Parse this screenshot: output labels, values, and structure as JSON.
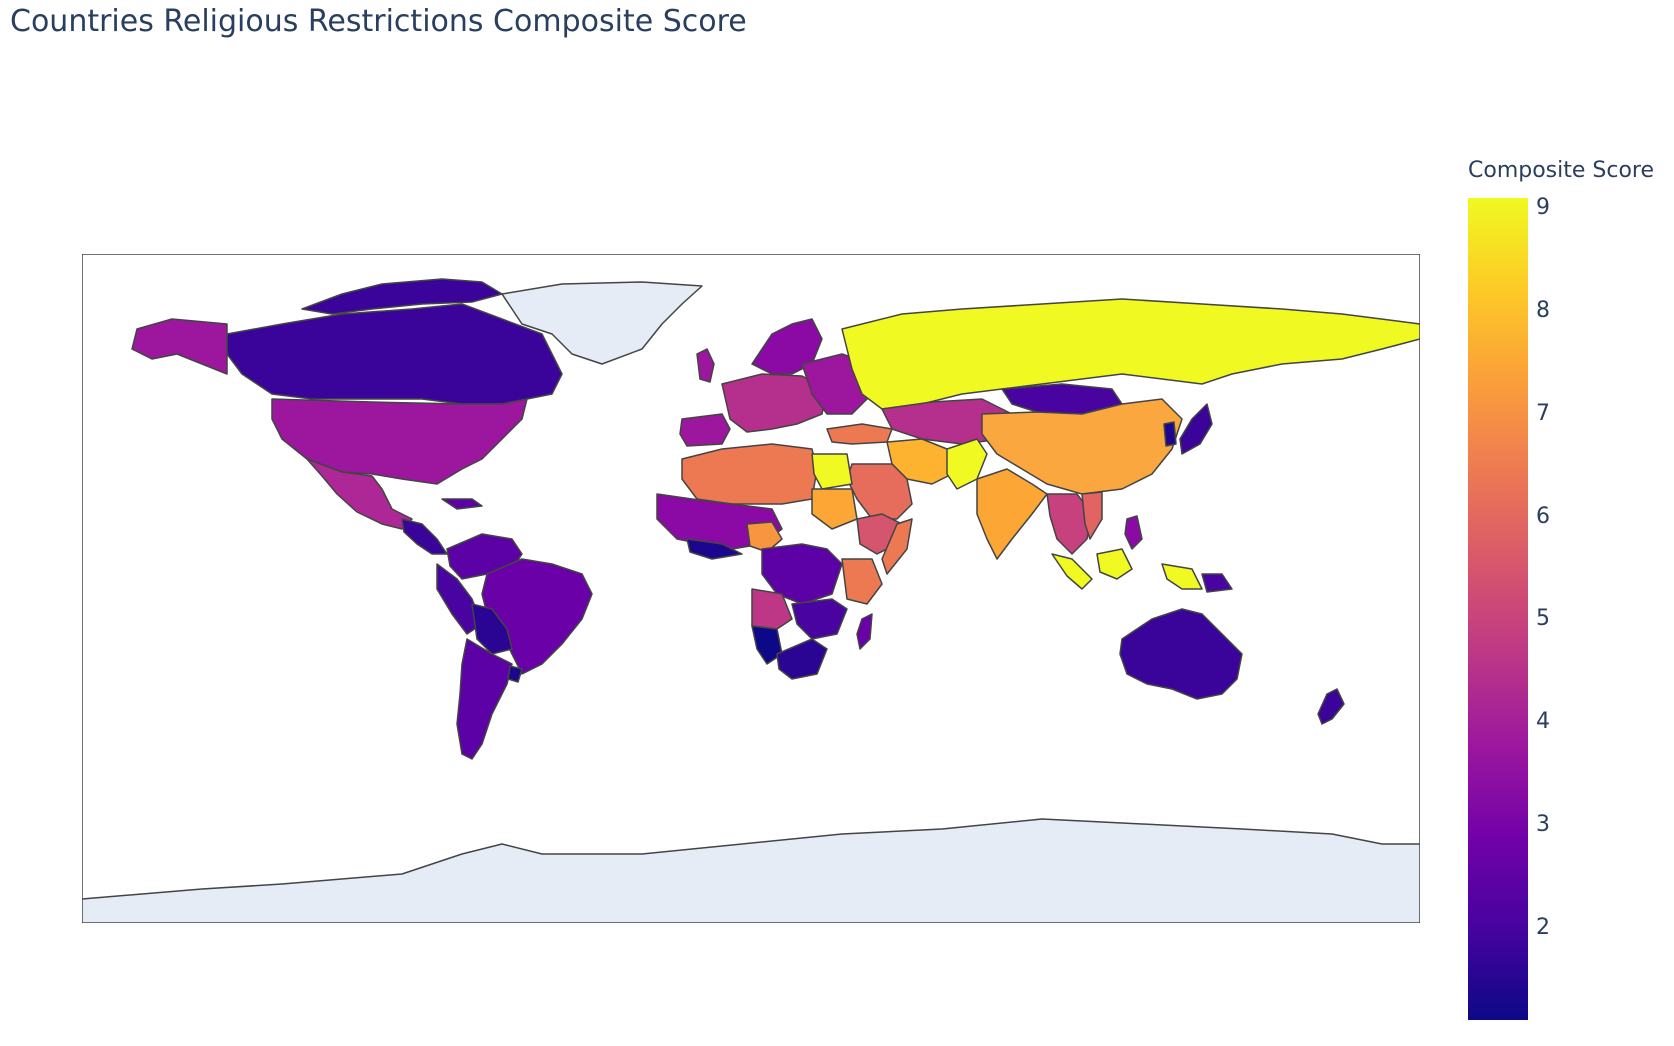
{
  "title": "Countries Religious Restrictions Composite Score",
  "colorbar": {
    "title": "Composite Score",
    "ticks": [
      "9",
      "8",
      "7",
      "6",
      "5",
      "4",
      "3",
      "2"
    ],
    "tick_values": [
      9,
      8,
      7,
      6,
      5,
      4,
      3,
      2
    ],
    "range": [
      1.1,
      9.1
    ],
    "colorscale": [
      "#0d0887",
      "#46039f",
      "#7201a8",
      "#9c179e",
      "#bd3786",
      "#d8576b",
      "#ed7953",
      "#fb9f3a",
      "#fdca26",
      "#f0f921"
    ]
  },
  "colors": {
    "ocean": "#ffffff",
    "no_data": "#e5ecf6",
    "border": "#444444"
  },
  "map_data": {
    "type": "choropleth",
    "projection": "equirectangular",
    "regions": [
      {
        "name": "Russia",
        "value": 8.8
      },
      {
        "name": "China",
        "value": 8.1
      },
      {
        "name": "India",
        "value": 7.9
      },
      {
        "name": "Egypt",
        "value": 9.1
      },
      {
        "name": "Indonesia",
        "value": 8.8
      },
      {
        "name": "Iran",
        "value": 8.2
      },
      {
        "name": "Pakistan",
        "value": 8.6
      },
      {
        "name": "Saudi Arabia",
        "value": 7.2
      },
      {
        "name": "Algeria",
        "value": 7.1
      },
      {
        "name": "Libya",
        "value": 7.0
      },
      {
        "name": "Sudan",
        "value": 7.8
      },
      {
        "name": "Turkey",
        "value": 7.1
      },
      {
        "name": "Nigeria",
        "value": 7.5
      },
      {
        "name": "Somalia",
        "value": 7.0
      },
      {
        "name": "Vietnam",
        "value": 6.5
      },
      {
        "name": "Ethiopia",
        "value": 6.0
      },
      {
        "name": "Angola",
        "value": 5.0
      },
      {
        "name": "Kazakhstan",
        "value": 4.5
      },
      {
        "name": "United States",
        "value": 4.0
      },
      {
        "name": "Mexico",
        "value": 4.3
      },
      {
        "name": "Brazil",
        "value": 3.0
      },
      {
        "name": "Canada",
        "value": 2.7
      },
      {
        "name": "Mongolia",
        "value": 2.5
      },
      {
        "name": "Australia",
        "value": 2.3
      },
      {
        "name": "Argentina",
        "value": 3.0
      },
      {
        "name": "Namibia",
        "value": 1.1
      },
      {
        "name": "South Africa",
        "value": 2.0
      },
      {
        "name": "DR Congo",
        "value": 3.0
      },
      {
        "name": "Madagascar",
        "value": 3.2
      },
      {
        "name": "Japan",
        "value": 2.5
      },
      {
        "name": "New Zealand",
        "value": 2.2
      }
    ]
  }
}
